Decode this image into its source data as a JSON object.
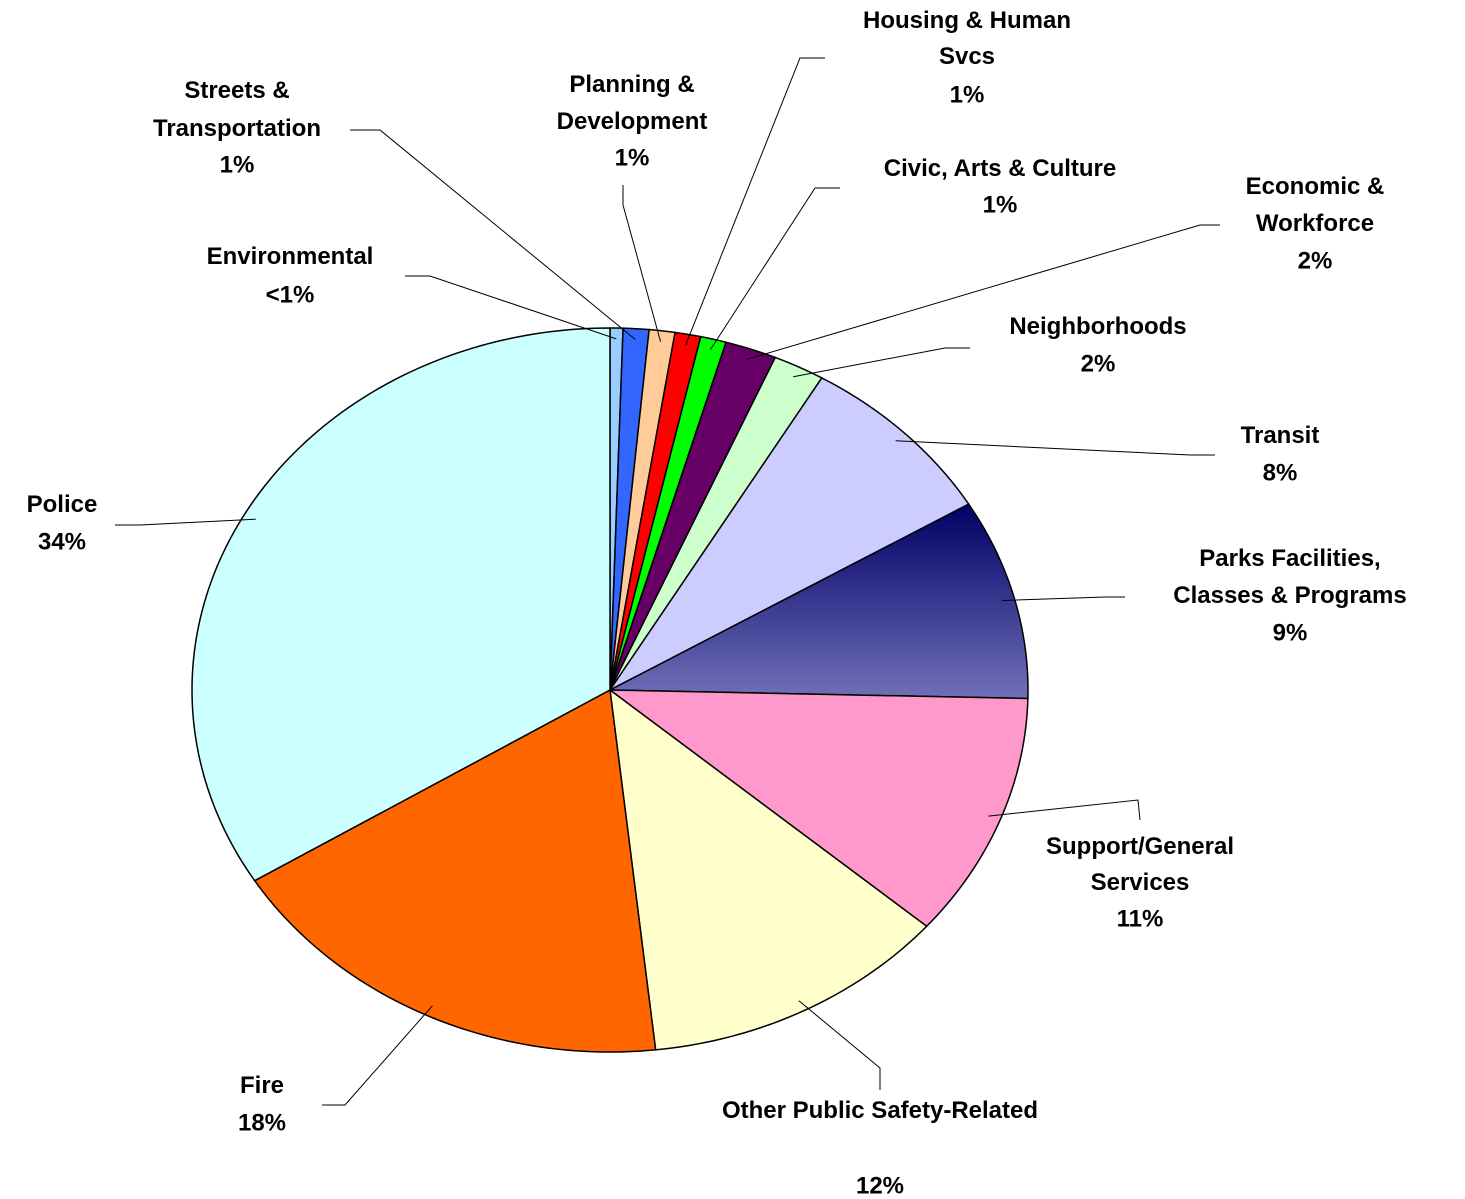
{
  "chart_data": {
    "type": "pie",
    "categories": [
      "Environmental",
      "Streets & Transportation",
      "Planning & Development",
      "Housing & Human Svcs",
      "Civic, Arts & Culture",
      "Economic & Workforce",
      "Neighborhoods",
      "Transit",
      "Parks Facilities, Classes & Programs",
      "Support/General Services",
      "Other Public Safety-Related",
      "Fire",
      "Police"
    ],
    "values": [
      0.5,
      1,
      1,
      1,
      1,
      2,
      2,
      8,
      9,
      11,
      12,
      18,
      34
    ],
    "value_labels": [
      "<1%",
      "1%",
      "1%",
      "1%",
      "1%",
      "2%",
      "2%",
      "8%",
      "9%",
      "11%",
      "12%",
      "18%",
      "34%"
    ],
    "colors": [
      "#99ccff",
      "#3366ff",
      "#ffcc99",
      "#ff0000",
      "#00ff00",
      "#660066",
      "#ccffcc",
      "#ccccff",
      "#1a1a80",
      "#ff99cc",
      "#ffffcc",
      "#ff6600",
      "#ccffff"
    ]
  }
}
